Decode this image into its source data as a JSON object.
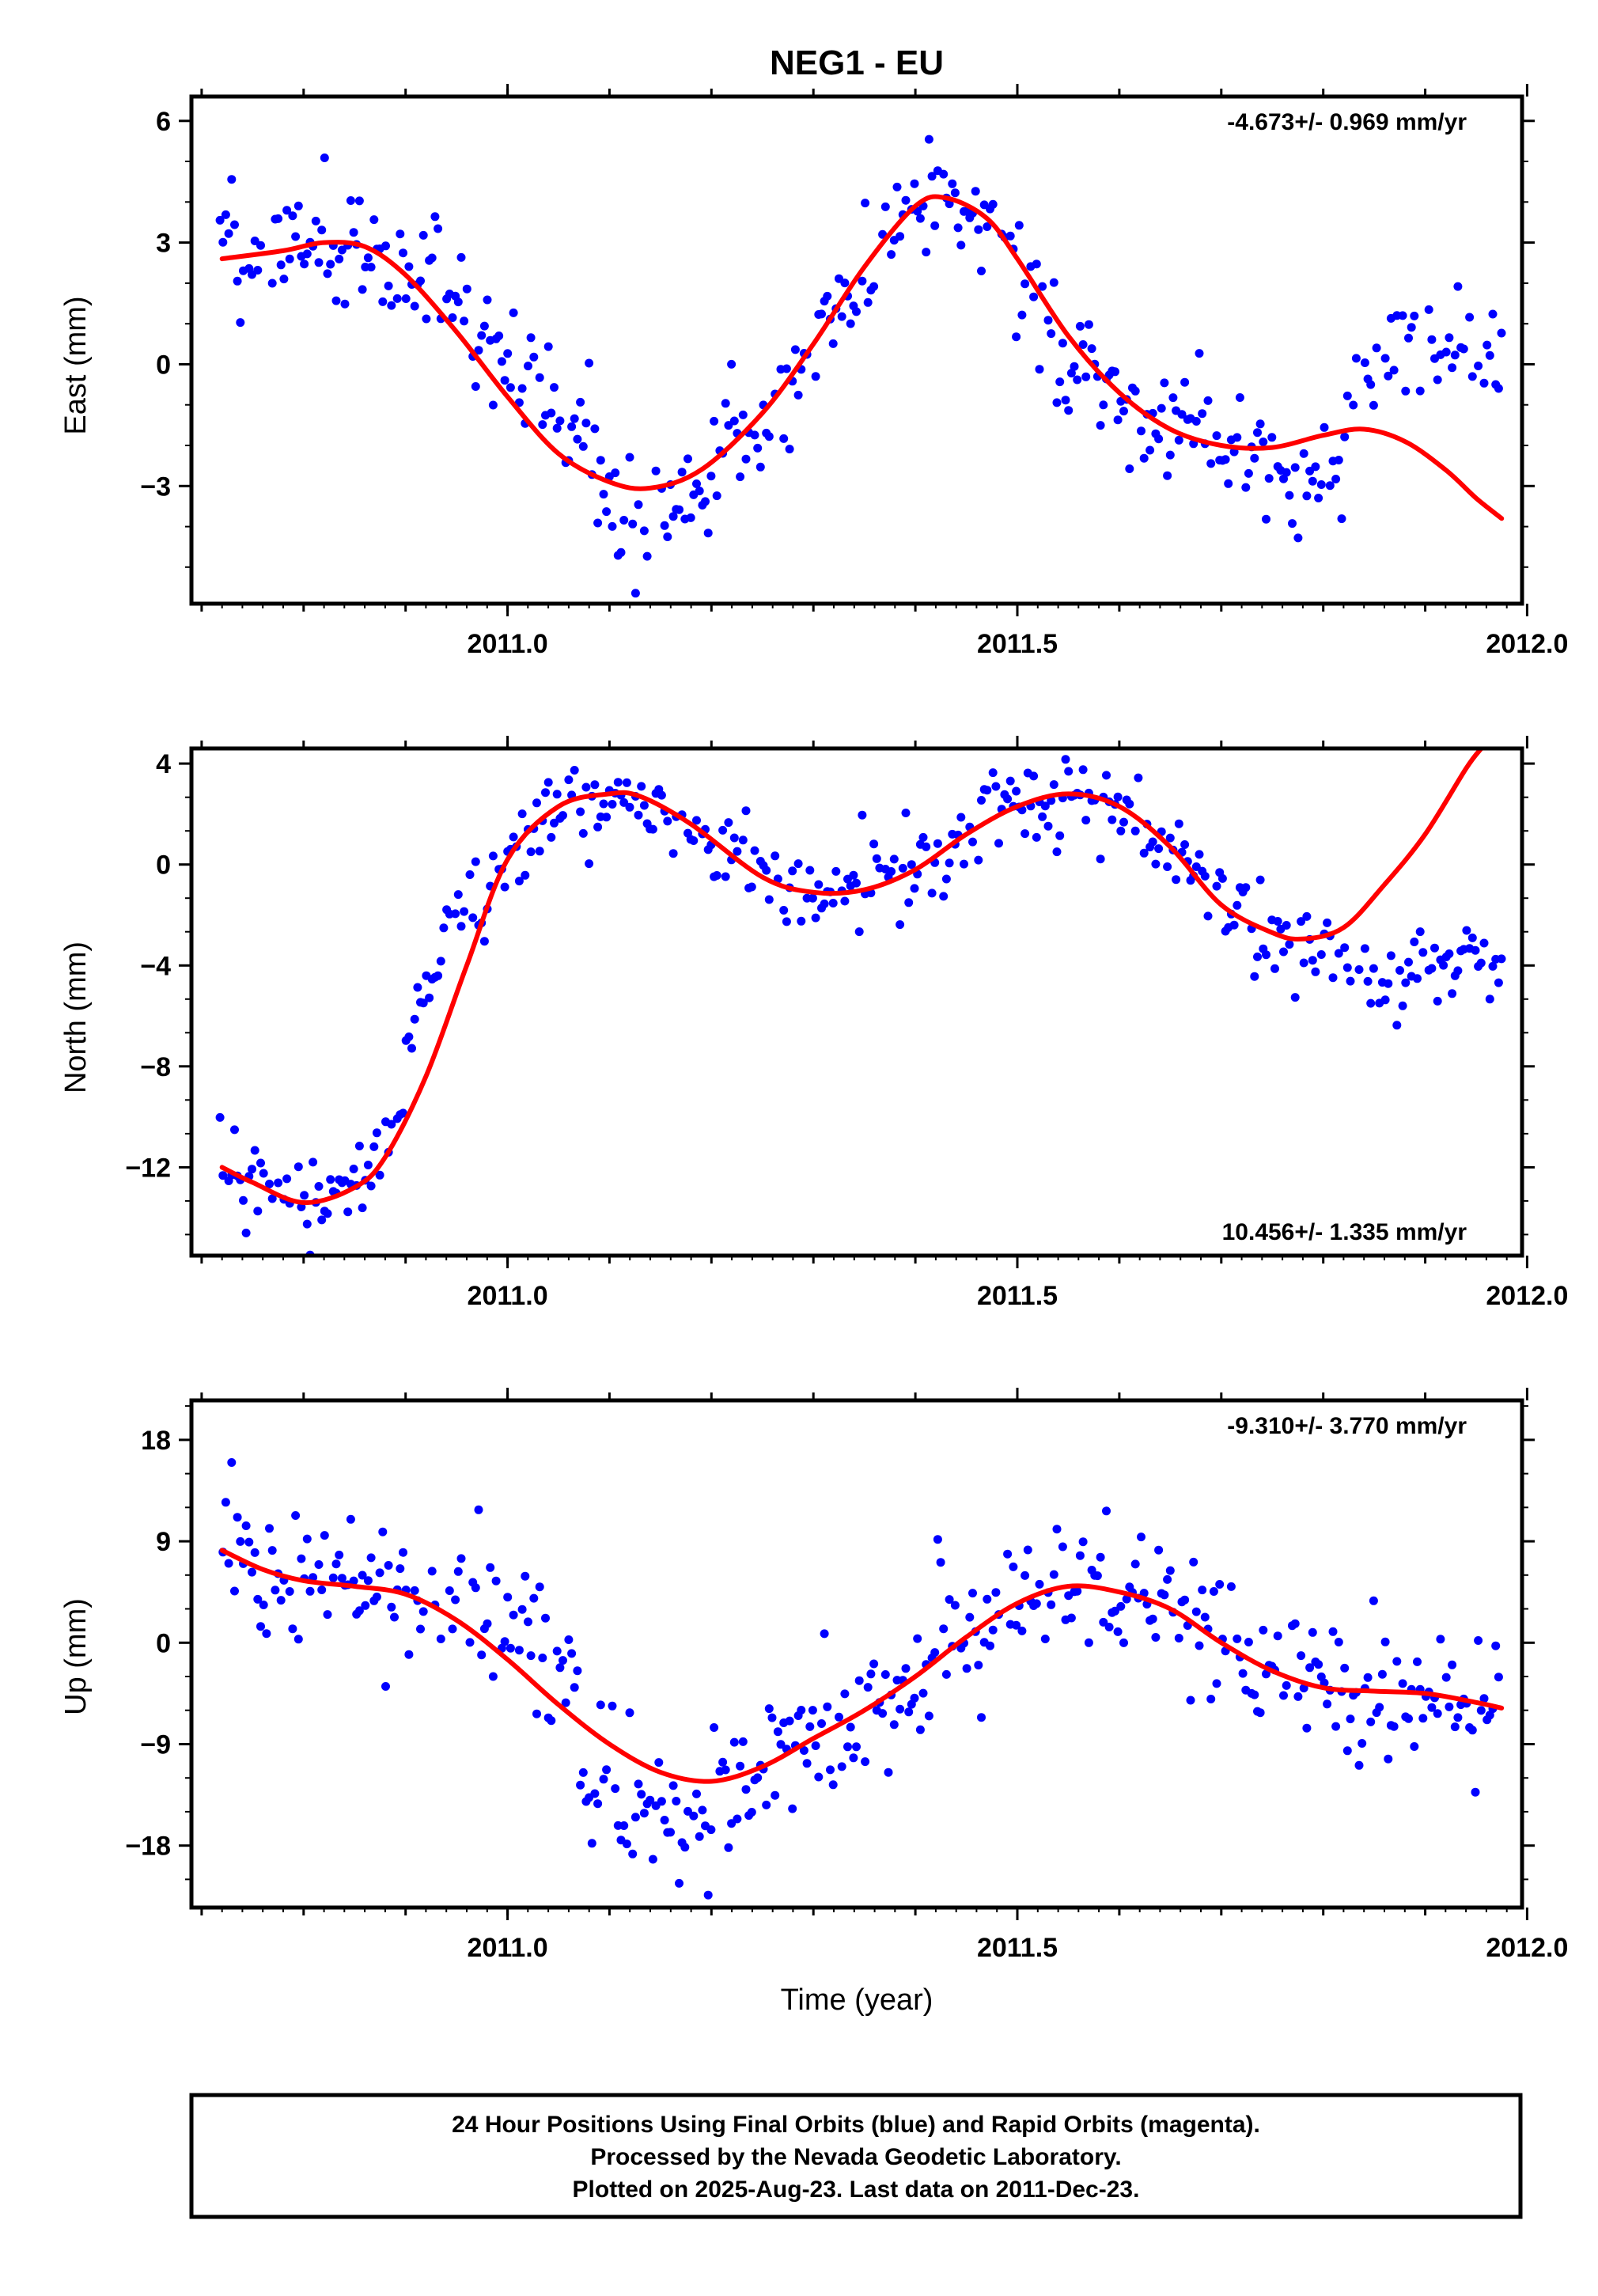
{
  "title": "NEG1 - EU",
  "xlabel": "Time (year)",
  "colors": {
    "data_points": "#0000ff",
    "model_fit": "#ff0000",
    "axes": "#000000"
  },
  "footer": {
    "lines": [
      "24 Hour Positions Using Final Orbits (blue) and Rapid Orbits (magenta).",
      "Processed by the Nevada Geodetic Laboratory.",
      "Plotted on 2025-Aug-23. Last data on 2011-Dec-23."
    ]
  },
  "chart_data": [
    {
      "type": "scatter",
      "component": "east",
      "ylabel": "East (mm)",
      "rate_label": "-4.673+/- 0.969 mm/yr",
      "rate_position": "top-right",
      "xlim": [
        2010.69,
        2011.995
      ],
      "ylim": [
        -5.9,
        6.6
      ],
      "xticks": [
        2011.0,
        2011.5,
        2012.0
      ],
      "xtick_labels": [
        "2011.0",
        "2011.5",
        "2012.0"
      ],
      "yticks": [
        6,
        3,
        0,
        -3
      ],
      "ytick_labels": [
        "6",
        "3",
        "0",
        "−3"
      ],
      "fit_model": {
        "x": [
          2010.72,
          2010.78,
          2010.82,
          2010.86,
          2010.9,
          2010.95,
          2011.0,
          2011.05,
          2011.1,
          2011.14,
          2011.19,
          2011.25,
          2011.3,
          2011.35,
          2011.4,
          2011.43,
          2011.47,
          2011.5,
          2011.55,
          2011.6,
          2011.65,
          2011.7,
          2011.75,
          2011.8,
          2011.84,
          2011.88,
          2011.92,
          2011.95,
          2011.975
        ],
        "y": [
          2.6,
          2.8,
          3.0,
          2.9,
          2.2,
          0.8,
          -0.8,
          -2.2,
          -2.9,
          -3.05,
          -2.6,
          -1.2,
          0.5,
          2.4,
          3.9,
          4.1,
          3.6,
          2.6,
          0.7,
          -0.7,
          -1.6,
          -2.0,
          -2.05,
          -1.75,
          -1.6,
          -1.9,
          -2.6,
          -3.3,
          -3.8
        ]
      }
    },
    {
      "type": "scatter",
      "component": "north",
      "ylabel": "North (mm)",
      "rate_label": "10.456+/- 1.335 mm/yr",
      "rate_position": "bottom-right",
      "xlim": [
        2010.69,
        2011.995
      ],
      "ylim": [
        -15.5,
        4.6
      ],
      "xticks": [
        2011.0,
        2011.5,
        2012.0
      ],
      "xtick_labels": [
        "2011.0",
        "2011.5",
        "2012.0"
      ],
      "yticks": [
        4,
        0,
        -4,
        -8,
        -12
      ],
      "ytick_labels": [
        "4",
        "0",
        "−4",
        "−8",
        "−12"
      ],
      "fit_model": {
        "x": [
          2010.72,
          2010.75,
          2010.8,
          2010.85,
          2010.88,
          2010.92,
          2010.96,
          2011.0,
          2011.05,
          2011.1,
          2011.13,
          2011.18,
          2011.25,
          2011.3,
          2011.35,
          2011.4,
          2011.45,
          2011.5,
          2011.55,
          2011.6,
          2011.65,
          2011.7,
          2011.75,
          2011.78,
          2011.82,
          2011.86,
          2011.9,
          2011.94,
          2011.955
        ],
        "y": [
          -12.0,
          -12.6,
          -13.4,
          -12.8,
          -11.6,
          -8.4,
          -4.0,
          0.2,
          2.3,
          2.8,
          2.7,
          1.6,
          -0.5,
          -1.1,
          -1.0,
          -0.2,
          1.2,
          2.3,
          2.8,
          2.3,
          0.7,
          -1.6,
          -2.7,
          -2.95,
          -2.5,
          -0.8,
          1.2,
          3.8,
          4.6
        ]
      }
    },
    {
      "type": "scatter",
      "component": "up",
      "ylabel": "Up (mm)",
      "rate_label": "-9.310+/- 3.770 mm/yr",
      "rate_position": "top-right",
      "xlim": [
        2010.69,
        2011.995
      ],
      "ylim": [
        -23.5,
        21.5
      ],
      "xticks": [
        2011.0,
        2011.5,
        2012.0
      ],
      "xtick_labels": [
        "2011.0",
        "2011.5",
        "2012.0"
      ],
      "yticks": [
        18,
        9,
        0,
        -9,
        -18
      ],
      "ytick_labels": [
        "18",
        "9",
        "0",
        "−9",
        "−18"
      ],
      "fit_model": {
        "x": [
          2010.72,
          2010.76,
          2010.8,
          2010.85,
          2010.9,
          2010.95,
          2011.0,
          2011.05,
          2011.1,
          2011.15,
          2011.2,
          2011.25,
          2011.3,
          2011.35,
          2011.4,
          2011.45,
          2011.5,
          2011.55,
          2011.6,
          2011.65,
          2011.7,
          2011.75,
          2011.8,
          2011.85,
          2011.9,
          2011.95,
          2011.975
        ],
        "y": [
          8.2,
          6.5,
          5.5,
          5.0,
          4.3,
          2.0,
          -1.5,
          -5.5,
          -9.0,
          -11.5,
          -12.3,
          -11.0,
          -8.5,
          -6.0,
          -3.0,
          0.5,
          3.5,
          5.0,
          4.5,
          3.0,
          0.0,
          -2.5,
          -4.0,
          -4.3,
          -4.5,
          -5.3,
          -5.8
        ]
      }
    }
  ]
}
